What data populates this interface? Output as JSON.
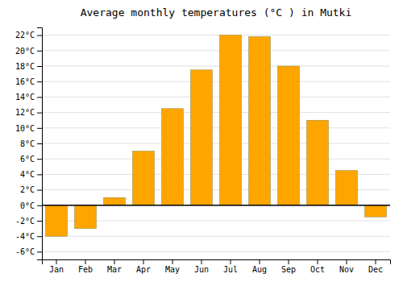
{
  "chart_data": {
    "type": "bar",
    "title": "Average monthly temperatures (°C ) in Mutki",
    "categories": [
      "Jan",
      "Feb",
      "Mar",
      "Apr",
      "May",
      "Jun",
      "Jul",
      "Aug",
      "Sep",
      "Oct",
      "Nov",
      "Dec"
    ],
    "values": [
      -4.0,
      -3.0,
      1.0,
      7.0,
      12.5,
      17.5,
      22.0,
      21.8,
      18.0,
      11.0,
      4.5,
      -1.5
    ],
    "color": "#FFA500",
    "ylim": [
      -7,
      23
    ],
    "yticks": [
      {
        "value": -6,
        "label": "-6°C"
      },
      {
        "value": -4,
        "label": "-4°C"
      },
      {
        "value": -2,
        "label": "-2°C"
      },
      {
        "value": 0,
        "label": "0°C"
      },
      {
        "value": 2,
        "label": "2°C"
      },
      {
        "value": 4,
        "label": "4°C"
      },
      {
        "value": 6,
        "label": "6°C"
      },
      {
        "value": 8,
        "label": "8°C"
      },
      {
        "value": 10,
        "label": "10°C"
      },
      {
        "value": 12,
        "label": "12°C"
      },
      {
        "value": 14,
        "label": "14°C"
      },
      {
        "value": 16,
        "label": "16°C"
      },
      {
        "value": 18,
        "label": "18°C"
      },
      {
        "value": 20,
        "label": "20°C"
      },
      {
        "value": 22,
        "label": "22°C"
      }
    ],
    "grid": true
  }
}
